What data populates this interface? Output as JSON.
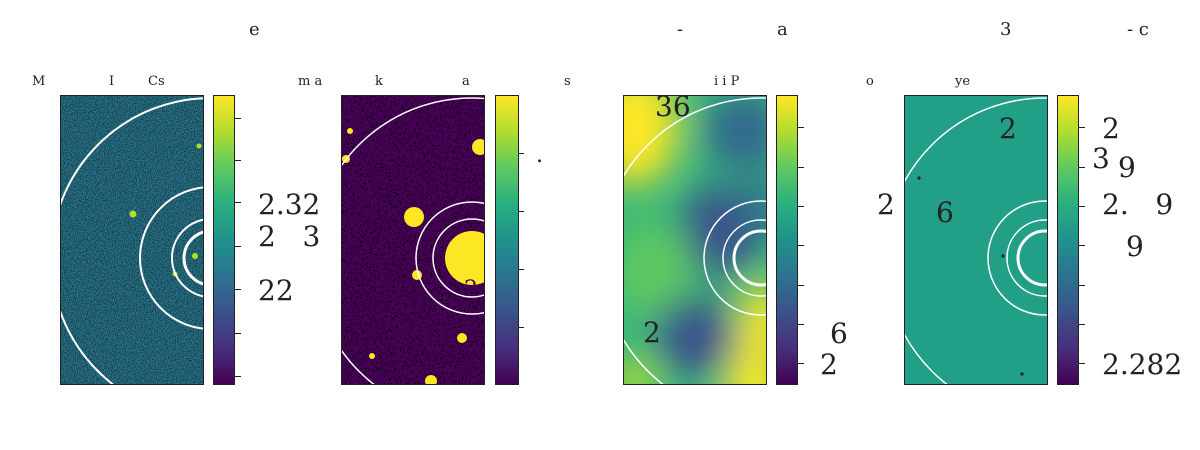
{
  "figure": {
    "top_labels": [
      "e",
      "-",
      "a",
      "3",
      "-  c"
    ]
  },
  "panels": [
    {
      "id": "p1",
      "labels": [
        "M",
        "I",
        "Cs"
      ],
      "image": "noise-field",
      "colorbar_labels": [
        "2.32",
        "2   3",
        "22"
      ]
    },
    {
      "id": "p2",
      "labels": [
        "m a",
        "k",
        "a",
        "s"
      ],
      "image": "binary-mask",
      "colorbar_labels": [
        "."
      ],
      "image_labels": [
        "2"
      ]
    },
    {
      "id": "p3",
      "labels": [
        "i i P"
      ],
      "image": "smooth-field",
      "image_labels": [
        "36",
        "2"
      ],
      "colorbar_labels": [
        "6",
        "2"
      ]
    },
    {
      "id": "p4",
      "labels": [
        "o",
        "ye"
      ],
      "image": "flat-field",
      "image_labels": [
        "2",
        "6"
      ],
      "left_label": "2",
      "colorbar_labels": [
        "2",
        "3",
        "9",
        "2.   9",
        "9",
        "2.282"
      ]
    }
  ],
  "colors": {
    "cmap_low": "#440154",
    "cmap_mid": "#21918c",
    "cmap_high": "#fde725",
    "ring": "#ffffff",
    "frame": "#222222"
  }
}
